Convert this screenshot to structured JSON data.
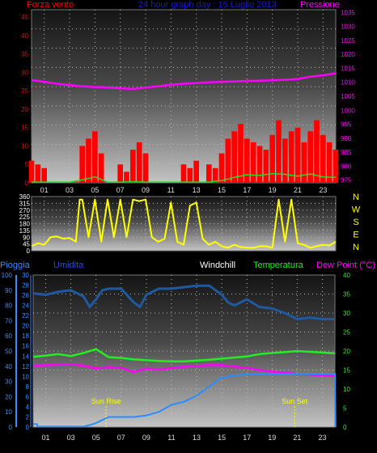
{
  "colors": {
    "background": "#000000",
    "wind": "#ff0000",
    "gust": "#22dd22",
    "pressure": "#ff00ff",
    "direction": "#ffff00",
    "humidity": "#1f5aa0",
    "temperature": "#22ee22",
    "dewpoint": "#ff00ff",
    "rain": "#2a8cff",
    "header_title": "#1a1acc",
    "header_pioggia": "#3a8cff",
    "header_umidita": "#2a4ccc",
    "header_windchill": "#ffffff",
    "sun": "#ffff00"
  },
  "header": {
    "title": "24 hour graph day : 15 Luglio 2013",
    "wind_label": "Forza vento",
    "pressure_label": "Pressione",
    "rain_label": "Pioggia",
    "humidity_label": "Umidita",
    "windchill_label": "Windchill",
    "temperature_label": "Temperatura",
    "dewpoint_label": "Dew Point (°C)"
  },
  "annotations": {
    "sun_rise": "Sun Rise",
    "sun_set": "Sun Set",
    "sun_rise_hour": 5.8,
    "sun_set_hour": 20.8
  },
  "chart_data": [
    {
      "type": "line",
      "panel": "wind-pressure",
      "x_ticks": [
        "01",
        "03",
        "05",
        "07",
        "09",
        "11",
        "13",
        "15",
        "17",
        "19",
        "21",
        "23"
      ],
      "xlim": [
        0,
        24
      ],
      "y_left": {
        "ticks": [
          "0",
          "5",
          "10",
          "15",
          "20",
          "25",
          "30",
          "35",
          "40",
          "45"
        ],
        "lim": [
          0,
          47
        ]
      },
      "y_right": {
        "ticks": [
          "975",
          "980",
          "985",
          "990",
          "995",
          "1000",
          "1005",
          "1010",
          "1015",
          "1020",
          "1025",
          "1030",
          "1035"
        ],
        "lim": [
          974,
          1036
        ]
      },
      "series": [
        {
          "key": "pressure",
          "axis": "right",
          "x": [
            0,
            1,
            2,
            3,
            4,
            5,
            6,
            7,
            8,
            9,
            10,
            11,
            12,
            13,
            14,
            15,
            16,
            17,
            18,
            19,
            20,
            21,
            22,
            23,
            24
          ],
          "values": [
            1010.8,
            1010.2,
            1009.5,
            1009.0,
            1008.6,
            1008.3,
            1008.2,
            1007.8,
            1007.6,
            1008.1,
            1008.6,
            1009.1,
            1009.5,
            1009.7,
            1010.0,
            1010.2,
            1010.3,
            1010.5,
            1010.6,
            1010.7,
            1010.9,
            1011.2,
            1012.0,
            1012.5,
            1013.2
          ]
        },
        {
          "key": "wind",
          "axis": "left",
          "style": "bars",
          "x": [
            0,
            0.5,
            1,
            1.5,
            2,
            2.5,
            3,
            3.5,
            4,
            4.5,
            5,
            5.5,
            6,
            6.5,
            7,
            7.5,
            8,
            8.5,
            9,
            9.5,
            10,
            10.5,
            11,
            11.5,
            12,
            12.5,
            13,
            13.5,
            14,
            14.5,
            15,
            15.5,
            16,
            16.5,
            17,
            17.5,
            18,
            18.5,
            19,
            19.5,
            20,
            20.5,
            21,
            21.5,
            22,
            22.5,
            23,
            23.5,
            24
          ],
          "values": [
            6,
            5,
            4,
            0,
            0,
            0,
            0,
            0,
            10,
            12,
            14,
            8,
            0,
            0,
            5,
            3,
            9,
            11,
            8,
            0,
            0,
            0,
            0,
            0,
            5,
            4,
            6,
            0,
            5,
            4,
            8,
            12,
            14,
            16,
            12,
            11,
            10,
            9,
            13,
            17,
            12,
            14,
            15,
            11,
            14,
            17,
            13,
            11,
            9
          ]
        },
        {
          "key": "gust",
          "axis": "left",
          "x": [
            0,
            1,
            2,
            3,
            4,
            5,
            6,
            7,
            8,
            9,
            10,
            11,
            12,
            13,
            14,
            15,
            16,
            17,
            18,
            19,
            20,
            21,
            22,
            23,
            24
          ],
          "values": [
            0.2,
            0.2,
            0.2,
            0.2,
            0.8,
            1.6,
            0.2,
            0.2,
            0.3,
            0.2,
            0.2,
            0.2,
            0.2,
            0.2,
            0.2,
            0.6,
            1.5,
            2.2,
            2.0,
            2.5,
            2.3,
            1.8,
            2.4,
            1.6,
            1.5
          ]
        }
      ]
    },
    {
      "type": "line",
      "panel": "wind-direction",
      "x_ticks": [
        "01",
        "03",
        "05",
        "07",
        "09",
        "11",
        "13",
        "15",
        "17",
        "19",
        "21",
        "23"
      ],
      "xlim": [
        0,
        24
      ],
      "y_left": {
        "ticks": [
          "0",
          "45",
          "90",
          "135",
          "180",
          "225",
          "270",
          "315",
          "360"
        ],
        "lim": [
          0,
          360
        ]
      },
      "y_right": {
        "ticks": [
          "N",
          "E",
          "S",
          "W",
          "N"
        ]
      },
      "series": [
        {
          "key": "direction",
          "x": [
            0,
            0.5,
            1,
            1.5,
            2,
            2.5,
            3,
            3.5,
            3.8,
            4,
            4.5,
            5,
            5.5,
            6,
            6.5,
            7,
            7.5,
            8,
            8.5,
            9,
            9.5,
            10,
            10.5,
            11,
            11.5,
            12,
            12.5,
            13,
            13.5,
            14,
            14.5,
            15,
            15.5,
            16,
            16.5,
            17,
            17.5,
            18,
            18.5,
            19,
            19.5,
            20,
            20.5,
            21,
            21.5,
            22,
            22.5,
            23,
            23.5,
            24
          ],
          "values": [
            30,
            50,
            40,
            90,
            95,
            80,
            85,
            60,
            340,
            340,
            90,
            340,
            60,
            340,
            90,
            340,
            90,
            340,
            330,
            340,
            90,
            60,
            80,
            320,
            60,
            40,
            300,
            320,
            80,
            40,
            60,
            30,
            20,
            40,
            25,
            20,
            20,
            30,
            30,
            20,
            340,
            60,
            340,
            50,
            40,
            20,
            30,
            40,
            35,
            60
          ]
        }
      ]
    },
    {
      "type": "line",
      "panel": "temperature-humidity-rain",
      "x_ticks": [
        "01",
        "03",
        "05",
        "07",
        "09",
        "11",
        "13",
        "15",
        "17",
        "19",
        "21",
        "23"
      ],
      "xlim": [
        0,
        24
      ],
      "y_left_outer": {
        "label": "Pioggia",
        "ticks": [
          "0",
          "10",
          "20",
          "30",
          "40",
          "50",
          "60",
          "70",
          "80",
          "90",
          "100"
        ],
        "lim": [
          0,
          100
        ]
      },
      "y_left_inner": {
        "ticks": [
          "0",
          "2",
          "4",
          "6",
          "8",
          "10",
          "12",
          "14",
          "16",
          "18",
          "20",
          "22",
          "24",
          "26",
          "28",
          "30"
        ],
        "lim": [
          0,
          30
        ]
      },
      "y_right": {
        "ticks": [
          "0",
          "5",
          "10",
          "15",
          "20",
          "25",
          "30",
          "35",
          "40"
        ],
        "lim": [
          0,
          40
        ]
      },
      "series": [
        {
          "key": "humidity",
          "axis": "left_outer",
          "x": [
            0,
            1,
            2,
            3,
            4,
            4.5,
            5,
            5.5,
            6,
            7,
            8,
            8.5,
            9,
            10,
            11,
            12,
            13,
            14,
            15,
            15.5,
            16,
            17,
            18,
            19,
            20,
            21,
            22,
            23,
            24
          ],
          "values": [
            88,
            87,
            89,
            90,
            86,
            79,
            84,
            90,
            91,
            91,
            82,
            79,
            87,
            91,
            91,
            92,
            93,
            93,
            87,
            82,
            80,
            84,
            79,
            78,
            75,
            71,
            72,
            71,
            71
          ]
        },
        {
          "key": "temperature",
          "axis": "right",
          "x": [
            0,
            1,
            2,
            3,
            4,
            5,
            6,
            7,
            8,
            9,
            10,
            11,
            12,
            13,
            14,
            15,
            16,
            17,
            18,
            19,
            20,
            21,
            22,
            23,
            24
          ],
          "values": [
            18.5,
            18.8,
            19.2,
            18.7,
            19.5,
            20.5,
            18.4,
            18.2,
            17.8,
            17.6,
            17.4,
            17.3,
            17.3,
            17.5,
            17.7,
            18.0,
            18.3,
            18.6,
            19.2,
            19.5,
            19.7,
            20.0,
            19.8,
            19.6,
            19.4
          ]
        },
        {
          "key": "dewpoint",
          "axis": "right",
          "x": [
            0,
            1,
            2,
            3,
            4,
            5,
            6,
            7,
            8,
            9,
            10,
            11,
            12,
            13,
            14,
            15,
            16,
            17,
            18,
            19,
            20,
            21,
            22,
            23,
            24
          ],
          "values": [
            16.2,
            16.3,
            16.4,
            16.5,
            16.2,
            15.4,
            15.8,
            15.6,
            14.5,
            15.4,
            15.2,
            15.5,
            15.9,
            16.1,
            16.3,
            16.3,
            15.9,
            15.6,
            15.0,
            14.6,
            14.3,
            14.0,
            13.8,
            13.6,
            13.4
          ]
        },
        {
          "key": "rain",
          "axis": "left_inner",
          "x": [
            0,
            0.3,
            0.35,
            4.0,
            4.5,
            5.0,
            5.5,
            6.0,
            8.0,
            9.0,
            10.0,
            11.0,
            12.0,
            13.0,
            14.0,
            15.0,
            16.0,
            17.0,
            18.0,
            19.0,
            20.0,
            21.0,
            22.0,
            23.0,
            24.0,
            24.05
          ],
          "values": [
            0.6,
            0.6,
            0.1,
            0.1,
            0.4,
            0.8,
            1.4,
            2.0,
            2.0,
            2.3,
            3.0,
            4.4,
            5.0,
            6.2,
            8.0,
            9.8,
            10.2,
            10.4,
            10.5,
            10.5,
            10.5,
            10.5,
            10.5,
            10.5,
            10.5,
            0
          ]
        }
      ]
    }
  ]
}
